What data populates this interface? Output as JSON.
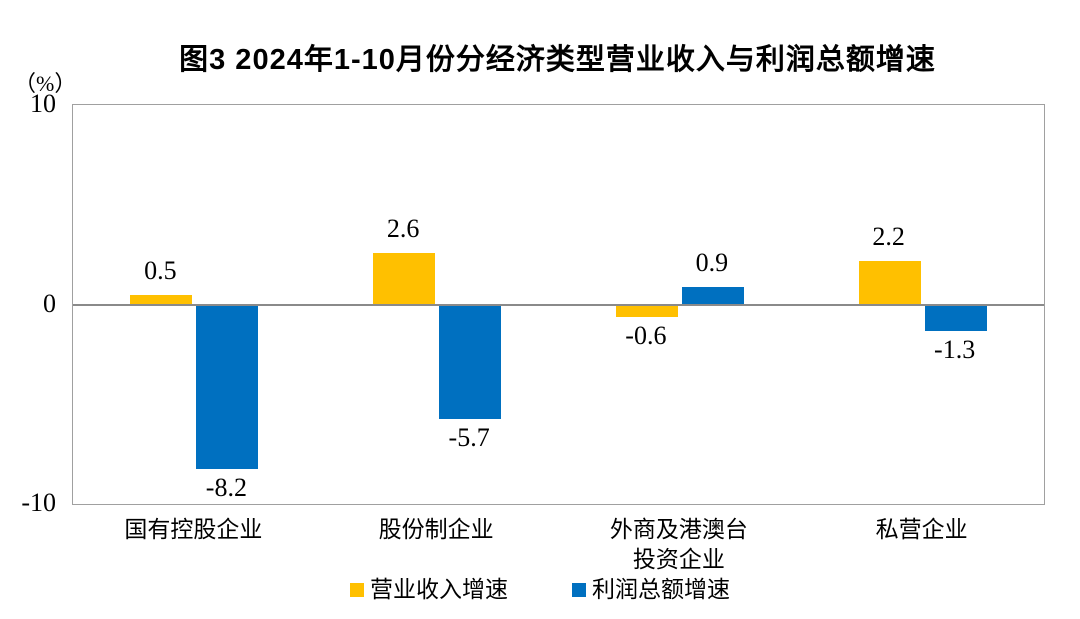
{
  "title": "图3 2024年1-10月份分经济类型营业收入与利润总额增速",
  "y_axis": {
    "unit_label": "（%）",
    "tick_labels": [
      "10",
      "0",
      "-10"
    ],
    "tick_values": [
      10,
      0,
      -10
    ]
  },
  "chart_data": {
    "type": "bar",
    "title": "图3 2024年1-10月份分经济类型营业收入与利润总额增速",
    "categories": [
      "国有控股企业",
      "股份制企业",
      "外商及港澳台\n投资企业",
      "私营企业"
    ],
    "series": [
      {
        "name": "营业收入增速",
        "color": "#FFC000",
        "values": [
          0.5,
          2.6,
          -0.6,
          2.2
        ]
      },
      {
        "name": "利润总额增速",
        "color": "#0070C0",
        "values": [
          -8.2,
          -5.7,
          0.9,
          -1.3
        ]
      }
    ],
    "value_labels": [
      "0.5",
      "-8.2",
      "2.6",
      "-5.7",
      "-0.6",
      "0.9",
      "2.2",
      "-1.3"
    ],
    "xlabel": "",
    "ylabel": "（%）",
    "ylim": [
      -10,
      10
    ],
    "grid": false,
    "legend_position": "bottom"
  },
  "colors": {
    "revenue_bar": "#FFC000",
    "profit_bar": "#0070C0",
    "plot_border": "#a0a0a0",
    "zero_line": "#8a8a8a",
    "text": "#000000",
    "background": "#FFFFFF"
  }
}
